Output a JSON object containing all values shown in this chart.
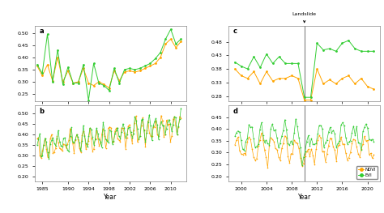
{
  "ndvi_color": "#FFA500",
  "evi_color": "#32CD32",
  "background": "#ffffff",
  "panel_bg": "#ffffff",
  "landslide_year": 2010,
  "panel_a": {
    "label": "a",
    "years": [
      1984,
      1985,
      1986,
      1987,
      1988,
      1989,
      1990,
      1991,
      1992,
      1993,
      1994,
      1995,
      1996,
      1997,
      1998,
      1999,
      2000,
      2001,
      2002,
      2003,
      2004,
      2005,
      2006,
      2007,
      2008,
      2009,
      2010,
      2011,
      2012
    ],
    "ndvi": [
      0.365,
      0.325,
      0.37,
      0.305,
      0.4,
      0.3,
      0.345,
      0.295,
      0.3,
      0.355,
      0.295,
      0.285,
      0.3,
      0.29,
      0.275,
      0.345,
      0.305,
      0.34,
      0.345,
      0.34,
      0.345,
      0.355,
      0.365,
      0.375,
      0.4,
      0.455,
      0.475,
      0.44,
      0.465
    ],
    "evi": [
      0.37,
      0.335,
      0.495,
      0.3,
      0.43,
      0.29,
      0.36,
      0.295,
      0.295,
      0.37,
      0.225,
      0.375,
      0.295,
      0.285,
      0.265,
      0.355,
      0.295,
      0.35,
      0.355,
      0.35,
      0.355,
      0.365,
      0.375,
      0.395,
      0.42,
      0.475,
      0.515,
      0.455,
      0.475
    ],
    "ylim": [
      0.22,
      0.53
    ],
    "yticks": [
      0.25,
      0.3,
      0.35,
      0.4,
      0.45,
      0.5
    ]
  },
  "panel_b": {
    "label": "b",
    "n_points": 110,
    "ylim": [
      0.18,
      0.54
    ],
    "yticks": [
      0.2,
      0.25,
      0.3,
      0.35,
      0.4,
      0.45,
      0.5
    ],
    "xstart": 1984,
    "xend": 2012
  },
  "panel_c": {
    "label": "c",
    "years": [
      1999,
      2000,
      2001,
      2002,
      2003,
      2004,
      2005,
      2006,
      2007,
      2008,
      2009,
      2010,
      2011,
      2012,
      2013,
      2014,
      2015,
      2016,
      2017,
      2018,
      2019,
      2020,
      2021
    ],
    "ndvi": [
      0.38,
      0.355,
      0.345,
      0.37,
      0.325,
      0.37,
      0.335,
      0.345,
      0.345,
      0.355,
      0.345,
      0.265,
      0.265,
      0.38,
      0.325,
      0.34,
      0.325,
      0.345,
      0.355,
      0.325,
      0.345,
      0.315,
      0.305
    ],
    "evi": [
      0.405,
      0.39,
      0.38,
      0.425,
      0.385,
      0.435,
      0.4,
      0.425,
      0.4,
      0.4,
      0.4,
      0.275,
      0.275,
      0.475,
      0.45,
      0.455,
      0.445,
      0.475,
      0.485,
      0.455,
      0.445,
      0.445,
      0.445
    ],
    "ylim": [
      0.26,
      0.54
    ],
    "yticks": [
      0.28,
      0.33,
      0.38,
      0.43,
      0.48
    ]
  },
  "panel_d": {
    "label": "d",
    "n_points": 90,
    "ylim": [
      0.18,
      0.5
    ],
    "yticks": [
      0.2,
      0.25,
      0.3,
      0.35,
      0.4,
      0.45
    ],
    "xstart": 1999,
    "xend": 2021
  },
  "xlabel": "Year",
  "xticks_ab": [
    1985,
    1990,
    1994,
    1998,
    2002,
    2006,
    2010
  ],
  "xticks_cd": [
    2000,
    2004,
    2008,
    2012,
    2016,
    2020
  ]
}
